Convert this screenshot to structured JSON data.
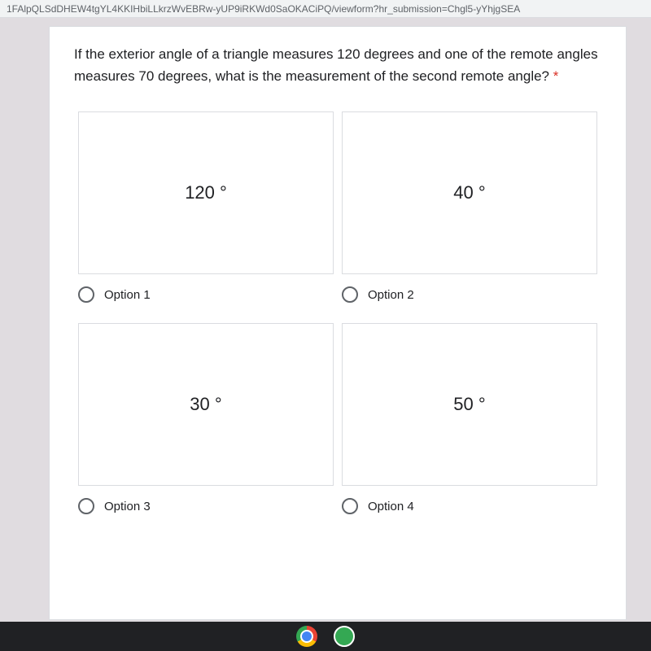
{
  "url_bar": "1FAlpQLSdDHEW4tgYL4KKIHbiLLkrzWvEBRw-yUP9iRKWd0SaOKACiPQ/viewform?hr_submission=Chgl5-yYhjgSEA",
  "question": {
    "text": "If the exterior angle of a triangle measures 120 degrees and one of the remote angles measures 70 degrees, what is the measurement of the second remote angle?",
    "required_marker": " *"
  },
  "options": [
    {
      "value": "120 °",
      "label": "Option 1"
    },
    {
      "value": "40 °",
      "label": "Option 2"
    },
    {
      "value": "30 °",
      "label": "Option 3"
    },
    {
      "value": "50 °",
      "label": "Option 4"
    }
  ],
  "colors": {
    "background": "#e0dce0",
    "card_background": "#ffffff",
    "border": "#dadce0",
    "text": "#202124",
    "required": "#d93025",
    "taskbar": "#202124"
  }
}
